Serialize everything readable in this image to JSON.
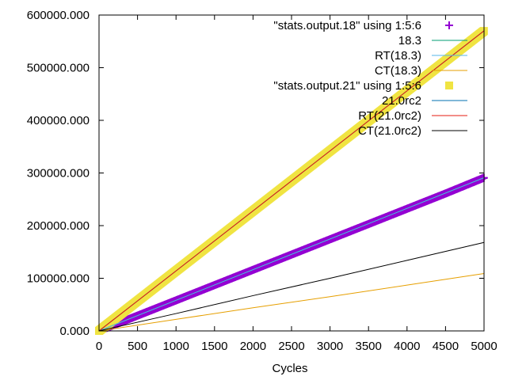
{
  "chart_data": {
    "type": "line",
    "xlabel": "Cycles",
    "ylabel": "",
    "title": "",
    "xlim": [
      0,
      5000
    ],
    "ylim": [
      0,
      600000
    ],
    "grid": false,
    "legend_placement": "top-right",
    "x_ticks": [
      "0",
      "500",
      "1000",
      "1500",
      "2000",
      "2500",
      "3000",
      "3500",
      "4000",
      "4500",
      "5000"
    ],
    "y_ticks": [
      "0.000",
      "100000.000",
      "200000.000",
      "300000.000",
      "400000.000",
      "500000.000",
      "600000.000"
    ],
    "series": [
      {
        "name": "\"stats.output.18\" using 1:5:6",
        "style": "points-plus",
        "color": "#9400d3",
        "x": [
          0,
          250,
          500,
          1000,
          1500,
          2000,
          2500,
          3000,
          3500,
          4000,
          4500,
          5000
        ],
        "y": [
          0,
          14500,
          29000,
          58000,
          87000,
          116000,
          145000,
          174000,
          203000,
          232000,
          261000,
          291000
        ]
      },
      {
        "name": "18.3",
        "style": "line",
        "color": "#009e73",
        "x": [
          0,
          5000
        ],
        "y": [
          0,
          291000
        ]
      },
      {
        "name": "RT(18.3)",
        "style": "line",
        "color": "#56b4e9",
        "x": [
          0,
          5000
        ],
        "y": [
          0,
          291000
        ]
      },
      {
        "name": "CT(18.3)",
        "style": "line",
        "color": "#e69f00",
        "x": [
          0,
          1000,
          2000,
          3000,
          4000,
          5000
        ],
        "y": [
          0,
          22000,
          44000,
          65000,
          87000,
          109000
        ]
      },
      {
        "name": "\"stats.output.21\" using 1:5:6",
        "style": "points-square",
        "color": "#f0e442",
        "x": [
          0,
          250,
          500,
          1000,
          1500,
          2000,
          2500,
          3000,
          3500,
          4000,
          4500,
          5000
        ],
        "y": [
          0,
          28500,
          57000,
          114000,
          171000,
          228000,
          285000,
          342000,
          399000,
          456000,
          513000,
          570000
        ]
      },
      {
        "name": "21.0rc2",
        "style": "line",
        "color": "#0072b2",
        "x": [
          0,
          5000
        ],
        "y": [
          0,
          570000
        ]
      },
      {
        "name": "RT(21.0rc2)",
        "style": "line",
        "color": "#e51e10",
        "x": [
          0,
          5000
        ],
        "y": [
          0,
          570000
        ]
      },
      {
        "name": "CT(21.0rc2)",
        "style": "line",
        "color": "#000000",
        "x": [
          0,
          1000,
          2000,
          3000,
          4000,
          5000
        ],
        "y": [
          0,
          33000,
          67000,
          100000,
          134000,
          168000
        ]
      }
    ]
  }
}
